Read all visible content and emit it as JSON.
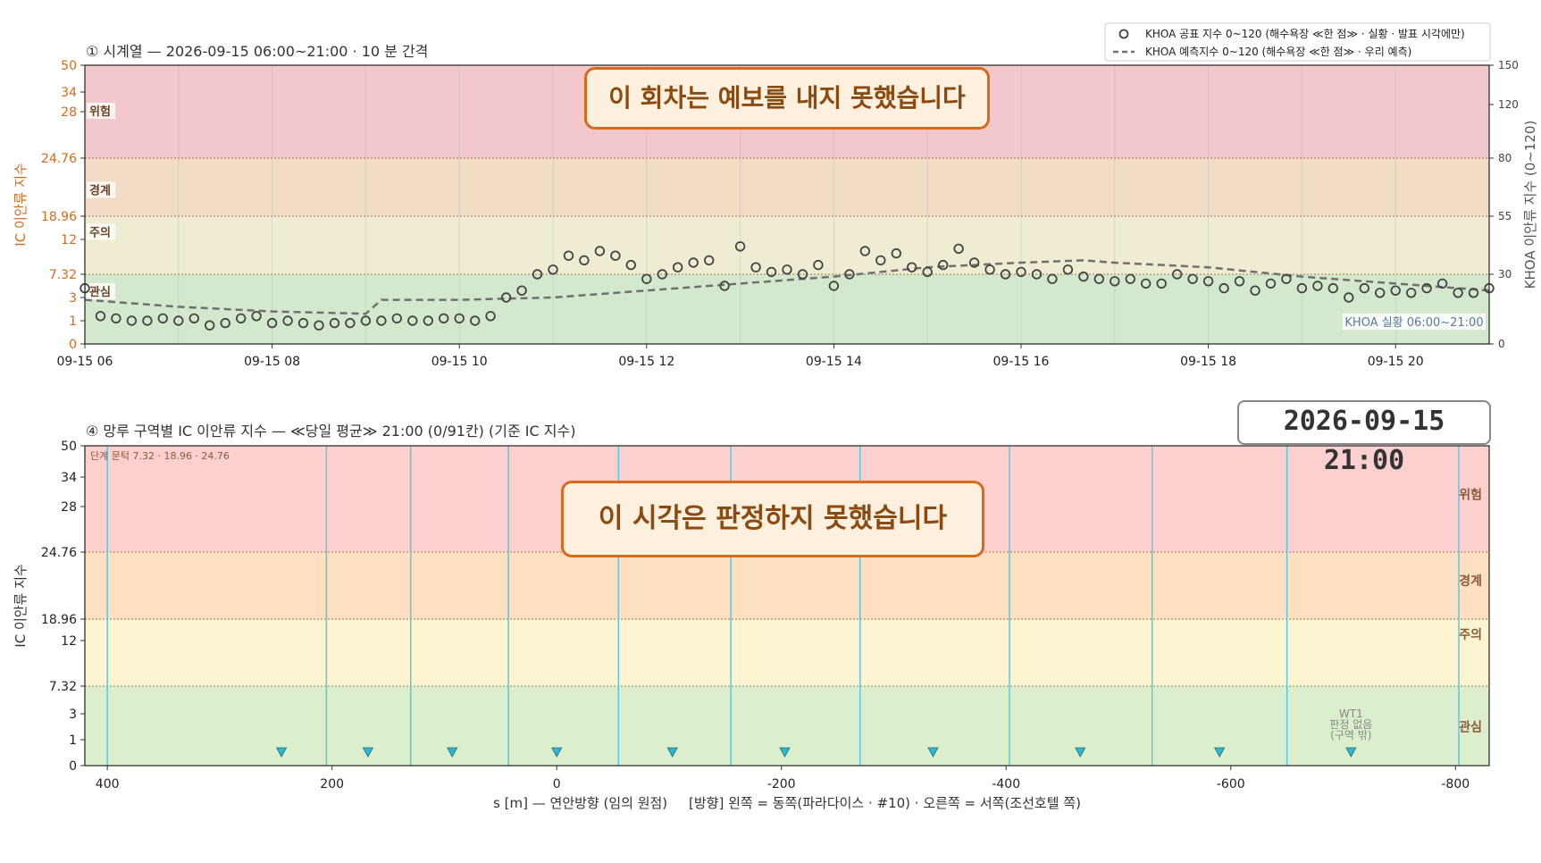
{
  "stamp": "2026-09-15  21:00",
  "colors": {
    "band_red": "#f2c8cc",
    "band_orange": "#f2dcc6",
    "band_yellow": "#f0ecd2",
    "band_green": "#d4e8cd",
    "band2_red": "#fdd0d0",
    "band2_orange": "#fde0c2",
    "band2_yellow": "#fdf5d2",
    "band2_green": "#dcefcc",
    "left_axis": "#d9691c",
    "zone_line": "#5ac8e0",
    "marker": "#2eb8d0",
    "dashed": "#707070"
  },
  "chart_data": [
    {
      "type": "scatter",
      "title": "① 시계열 — 2026-09-15 06:00~21:00 · 10 분 간격",
      "ylabel": "IC 이안류 지수",
      "ylabel_right": "KHOA 이안류 지수 (0~120)",
      "banner": "이 회차는 예보를 내지 못했습니다",
      "y_ticks": [
        "0",
        "1",
        "3",
        "7.32",
        "12",
        "18.96",
        "24.76",
        "28",
        "34",
        "50"
      ],
      "y_right_ticks": [
        "0",
        "30",
        "55",
        "80",
        "120",
        "150"
      ],
      "x_ticks": [
        "09-15 06",
        "09-15 08",
        "09-15 10",
        "09-15 12",
        "09-15 14",
        "09-15 16",
        "09-15 18",
        "09-15 20"
      ],
      "bands": [
        {
          "label": "위험",
          "from": 24.76,
          "to": 50
        },
        {
          "label": "경계",
          "from": 18.96,
          "to": 24.76
        },
        {
          "label": "주의",
          "from": 7.32,
          "to": 18.96
        },
        {
          "label": "관심",
          "from": 0,
          "to": 7.32
        }
      ],
      "legend_position": "top-right",
      "legend": [
        "KHOA 공표 지수 0~120 (해수욕장 ≪한 점≫ · 실황 · 발표 시각에만)",
        "KHOA 예측지수 0~120 (해수욕장 ≪한 점≫ · 우리 예측)"
      ],
      "annotation": "KHOA 실황 06:00~21:00",
      "x_range": [
        "2026-09-15 06:00",
        "2026-09-15 21:00"
      ],
      "series": [
        {
          "name": "KHOA 공표 지수 0~120 (해수욕장 ≪한 점≫ · 실황 · 발표 시각에만)",
          "t": [
            "06:00",
            "06:10",
            "06:20",
            "06:30",
            "06:40",
            "06:50",
            "07:00",
            "07:10",
            "07:20",
            "07:30",
            "07:40",
            "07:50",
            "08:00",
            "08:10",
            "08:20",
            "08:30",
            "08:40",
            "08:50",
            "09:00",
            "09:10",
            "09:20",
            "09:30",
            "09:40",
            "09:50",
            "10:00",
            "10:10",
            "10:20",
            "10:30",
            "10:40",
            "10:50",
            "11:00",
            "11:10",
            "11:20",
            "11:30",
            "11:40",
            "11:50",
            "12:00",
            "12:10",
            "12:20",
            "12:30",
            "12:40",
            "12:50",
            "13:00",
            "13:10",
            "13:20",
            "13:30",
            "13:40",
            "13:50",
            "14:00",
            "14:10",
            "14:20",
            "14:30",
            "14:40",
            "14:50",
            "15:00",
            "15:10",
            "15:20",
            "15:30",
            "15:40",
            "15:50",
            "16:00",
            "16:10",
            "16:20",
            "16:30",
            "16:40",
            "16:50",
            "17:00",
            "17:10",
            "17:20",
            "17:30",
            "17:40",
            "17:50",
            "18:00",
            "18:10",
            "18:20",
            "18:30",
            "18:40",
            "18:50",
            "19:00",
            "19:10",
            "19:20",
            "19:30",
            "19:40",
            "19:50",
            "20:00",
            "20:10",
            "20:20",
            "20:30",
            "20:40",
            "20:50",
            "21:00"
          ],
          "values": [
            24,
            12,
            11,
            10,
            10,
            11,
            10,
            11,
            8,
            9,
            11,
            12,
            9,
            10,
            9,
            8,
            9,
            9,
            10,
            10,
            11,
            10,
            10,
            11,
            11,
            10,
            12,
            20,
            23,
            30,
            32,
            38,
            36,
            40,
            38,
            34,
            28,
            30,
            33,
            35,
            36,
            25,
            42,
            33,
            31,
            32,
            30,
            34,
            25,
            30,
            40,
            36,
            39,
            33,
            31,
            34,
            41,
            35,
            32,
            30,
            31,
            30,
            28,
            32,
            29,
            28,
            27,
            28,
            26,
            26,
            30,
            28,
            27,
            24,
            27,
            23,
            26,
            28,
            24,
            25,
            24,
            20,
            24,
            22,
            23,
            22,
            24,
            26,
            22,
            22,
            24
          ]
        },
        {
          "name": "KHOA 예측지수 0~120 (해수욕장 ≪한 점≫ · 우리 예측)",
          "t": [
            "06:00",
            "07:00",
            "08:00",
            "09:00",
            "09:10",
            "10:00",
            "11:00",
            "12:00",
            "13:00",
            "14:00",
            "15:00",
            "16:00",
            "16:40",
            "17:00",
            "18:00",
            "19:00",
            "20:00",
            "21:00"
          ],
          "values": [
            19,
            16,
            14,
            13,
            19,
            19,
            20,
            23,
            26,
            29,
            33,
            35,
            36,
            35,
            33,
            29,
            26,
            23
          ]
        }
      ]
    },
    {
      "type": "scatter",
      "title": "④ 망루 구역별 IC 이안류 지수 — ≪당일 평균≫ 21:00  (0/91칸)   (기준 IC 지수)",
      "xlabel": "s [m] — 연안방향 (임의 원점)     [방향] 왼쪽 = 동쪽(파라다이스 · #10) · 오른쪽 = 서쪽(조선호텔 쪽)",
      "ylabel": "IC 이안류 지수",
      "banner": "이 시각은 판정하지 못했습니다",
      "corner_note": "단계 문턱 7.32 · 18.96 · 24.76",
      "x_ticks": [
        "400",
        "200",
        "0",
        "-200",
        "-400",
        "-600",
        "-800"
      ],
      "y_ticks": [
        "0",
        "1",
        "3",
        "7.32",
        "12",
        "18.96",
        "24.76",
        "28",
        "34",
        "50"
      ],
      "x_range": [
        420,
        -830
      ],
      "bands": [
        {
          "label": "위험",
          "from": 24.76,
          "to": 50
        },
        {
          "label": "경계",
          "from": 18.96,
          "to": 24.76
        },
        {
          "label": "주의",
          "from": 7.32,
          "to": 18.96
        },
        {
          "label": "관심",
          "from": 0,
          "to": 7.32
        }
      ],
      "zone_boundaries": [
        400,
        205,
        130,
        43,
        -55,
        -155,
        -270,
        -403,
        -530,
        -650,
        -803
      ],
      "markers_s": [
        245,
        168,
        93,
        0,
        -103,
        -203,
        -335,
        -466,
        -590,
        -707
      ],
      "wt_note": [
        "WT1",
        "판정 없음",
        "(구역 밖)"
      ]
    }
  ]
}
